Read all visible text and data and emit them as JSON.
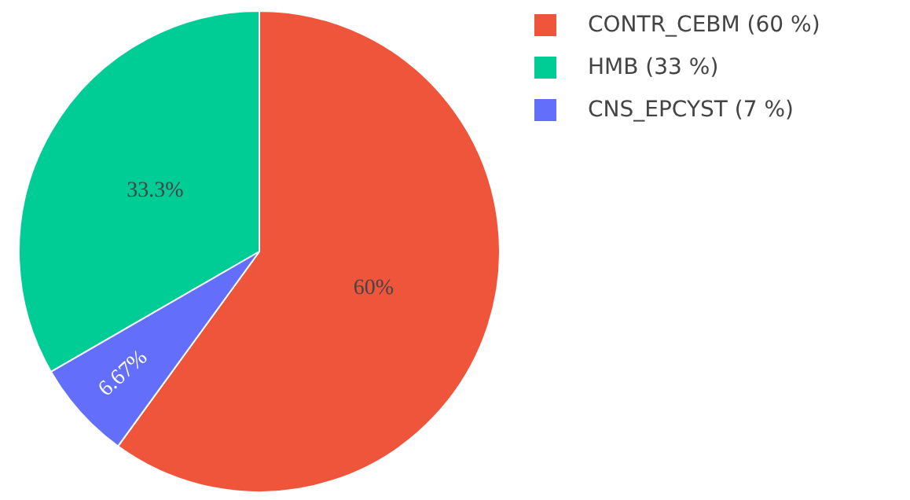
{
  "chart_data": {
    "type": "pie",
    "categories": [
      "CONTR_CEBM (60 %)",
      "HMB (33 %)",
      "CNS_EPCYST (7 %)"
    ],
    "values": [
      60,
      33.33,
      6.67
    ],
    "colors": [
      "#ef553b",
      "#00cc96",
      "#636efa"
    ],
    "value_labels": [
      "60%",
      "33.3%",
      "6.67%"
    ],
    "legend": "top right"
  }
}
